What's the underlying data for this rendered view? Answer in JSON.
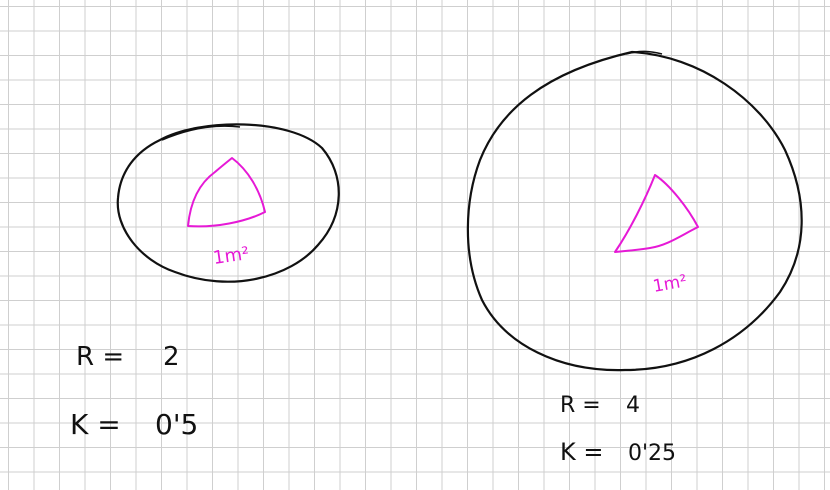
{
  "colors": {
    "ink": "#111111",
    "highlight": "#e619d6",
    "grid": "#cfcfcf",
    "paper": "#ffffff"
  },
  "left": {
    "area_label": "1m²",
    "r_label": "R =",
    "r_value": "2",
    "k_label": "K =",
    "k_value": "0'5"
  },
  "right": {
    "area_label": "1m²",
    "r_label": "R =",
    "r_value": "4",
    "k_label": "K =",
    "k_value": "0'25"
  }
}
